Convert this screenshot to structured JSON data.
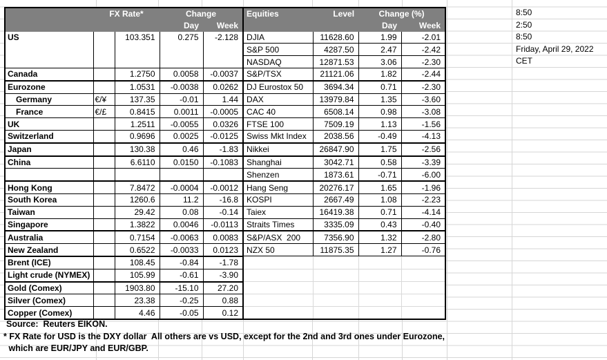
{
  "header": {
    "fx": {
      "rate_label": "FX Rate*",
      "change_label": "Change",
      "day_label": "Day",
      "week_label": "Week"
    },
    "equities": {
      "name_label": "Equities",
      "level_label": "Level",
      "change_label": "Change (%)",
      "day_label": "Day",
      "week_label": "Week"
    }
  },
  "rows": [
    {
      "country": "US",
      "symbol": "",
      "rate": "103.351",
      "day": "0.275",
      "week": "-2.128",
      "equity": "DJIA",
      "level": "11628.60",
      "eq_day": "1.99",
      "eq_week": "-2.01"
    },
    {
      "country": "",
      "symbol": "",
      "rate": "",
      "day": "",
      "week": "",
      "equity": "S&P 500",
      "level": "4287.50",
      "eq_day": "2.47",
      "eq_week": "-2.42"
    },
    {
      "country": "",
      "symbol": "",
      "rate": "",
      "day": "",
      "week": "",
      "equity": "NASDAQ",
      "level": "12871.53",
      "eq_day": "3.06",
      "eq_week": "-2.30"
    },
    {
      "country": "Canada",
      "symbol": "",
      "rate": "1.2750",
      "day": "0.0058",
      "week": "-0.0037",
      "equity": "S&P/TSX",
      "level": "21121.06",
      "eq_day": "1.82",
      "eq_week": "-2.44"
    },
    {
      "country": "Eurozone",
      "symbol": "",
      "rate": "1.0531",
      "day": "-0.0038",
      "week": "0.0262",
      "equity": "DJ Eurostox 50",
      "level": "3694.34",
      "eq_day": "0.71",
      "eq_week": "-2.30"
    },
    {
      "country": "Germany",
      "symbol": "€/¥",
      "rate": "137.35",
      "day": "-0.01",
      "week": "1.44",
      "equity": "DAX",
      "level": "13979.84",
      "eq_day": "1.35",
      "eq_week": "-3.60"
    },
    {
      "country": "France",
      "symbol": "€/£",
      "rate": "0.8415",
      "day": "0.0011",
      "week": "-0.0005",
      "equity": "CAC 40",
      "level": "6508.14",
      "eq_day": "0.98",
      "eq_week": "-3.08"
    },
    {
      "country": "UK",
      "symbol": "",
      "rate": "1.2511",
      "day": "-0.0055",
      "week": "0.0326",
      "equity": "FTSE 100",
      "level": "7509.19",
      "eq_day": "1.13",
      "eq_week": "-1.56"
    },
    {
      "country": "Switzerland",
      "symbol": "",
      "rate": "0.9696",
      "day": "0.0025",
      "week": "-0.0125",
      "equity": "Swiss Mkt Index",
      "level": "2038.56",
      "eq_day": "-0.49",
      "eq_week": "-4.13"
    },
    {
      "country": "Japan",
      "symbol": "",
      "rate": "130.38",
      "day": "0.46",
      "week": "-1.83",
      "equity": "Nikkei",
      "level": "26847.90",
      "eq_day": "1.75",
      "eq_week": "-2.56"
    },
    {
      "country": "China",
      "symbol": "",
      "rate": "6.6110",
      "day": "0.0150",
      "week": "-0.1083",
      "equity": "Shanghai",
      "level": "3042.71",
      "eq_day": "0.58",
      "eq_week": "-3.39"
    },
    {
      "country": "",
      "symbol": "",
      "rate": "",
      "day": "",
      "week": "",
      "equity": "Shenzen",
      "level": "1873.61",
      "eq_day": "-0.71",
      "eq_week": "-6.00"
    },
    {
      "country": "Hong Kong",
      "symbol": "",
      "rate": "7.8472",
      "day": "-0.0004",
      "week": "-0.0012",
      "equity": "Hang Seng",
      "level": "20276.17",
      "eq_day": "1.65",
      "eq_week": "-1.96"
    },
    {
      "country": "South Korea",
      "symbol": "",
      "rate": "1260.6",
      "day": "11.2",
      "week": "-16.8",
      "equity": "KOSPI",
      "level": "2667.49",
      "eq_day": "1.08",
      "eq_week": "-2.23"
    },
    {
      "country": "Taiwan",
      "symbol": "",
      "rate": "29.42",
      "day": "0.08",
      "week": "-0.14",
      "equity": "Taiex",
      "level": "16419.38",
      "eq_day": "0.71",
      "eq_week": "-4.14"
    },
    {
      "country": "Singapore",
      "symbol": "",
      "rate": "1.3822",
      "day": "0.0046",
      "week": "-0.0113",
      "equity": "Straits Times",
      "level": "3335.09",
      "eq_day": "0.43",
      "eq_week": "-0.40"
    },
    {
      "country": "Australia",
      "symbol": "",
      "rate": "0.7154",
      "day": "-0.0063",
      "week": "0.0083",
      "equity": "S&P/ASX  200",
      "level": "7356.90",
      "eq_day": "1.32",
      "eq_week": "-2.80"
    },
    {
      "country": "New Zealand",
      "symbol": "",
      "rate": "0.6522",
      "day": "-0.0033",
      "week": "0.0123",
      "equity": "NZX 50",
      "level": "11875.35",
      "eq_day": "1.27",
      "eq_week": "-0.76"
    },
    {
      "country": "Brent (ICE)",
      "symbol": "",
      "rate": "108.45",
      "day": "-0.84",
      "week": "-1.78",
      "equity": "",
      "level": "",
      "eq_day": "",
      "eq_week": ""
    },
    {
      "country": "Light crude (NYMEX)",
      "symbol": "",
      "rate": "105.99",
      "day": "-0.61",
      "week": "-3.90",
      "equity": "",
      "level": "",
      "eq_day": "",
      "eq_week": ""
    },
    {
      "country": "Gold (Comex)",
      "symbol": "",
      "rate": "1903.80",
      "day": "-15.10",
      "week": "27.20",
      "equity": "",
      "level": "",
      "eq_day": "",
      "eq_week": ""
    },
    {
      "country": "Silver (Comex)",
      "symbol": "",
      "rate": "23.38",
      "day": "-0.25",
      "week": "0.88",
      "equity": "",
      "level": "",
      "eq_day": "",
      "eq_week": ""
    },
    {
      "country": "Copper (Comex)",
      "symbol": "",
      "rate": "4.46",
      "day": "-0.05",
      "week": "0.12",
      "equity": "",
      "level": "",
      "eq_day": "",
      "eq_week": ""
    }
  ],
  "info_panel": {
    "lines": [
      "8:50",
      "2:50",
      "8:50",
      "Friday, April 29, 2022",
      "CET"
    ]
  },
  "footer": {
    "source": "Source:  Reuters EIKON.",
    "note_line1": "* FX Rate for USD is the DXY dollar  All others are vs USD, except for the 2nd and 3rd ones under Eurozone,",
    "note_line2": " which are EUR/JPY and EUR/GBP."
  },
  "colors": {
    "header_bg": "#808080",
    "header_text": "#ffffff",
    "table_border": "#000000",
    "grid_line": "#d6d6d6"
  }
}
